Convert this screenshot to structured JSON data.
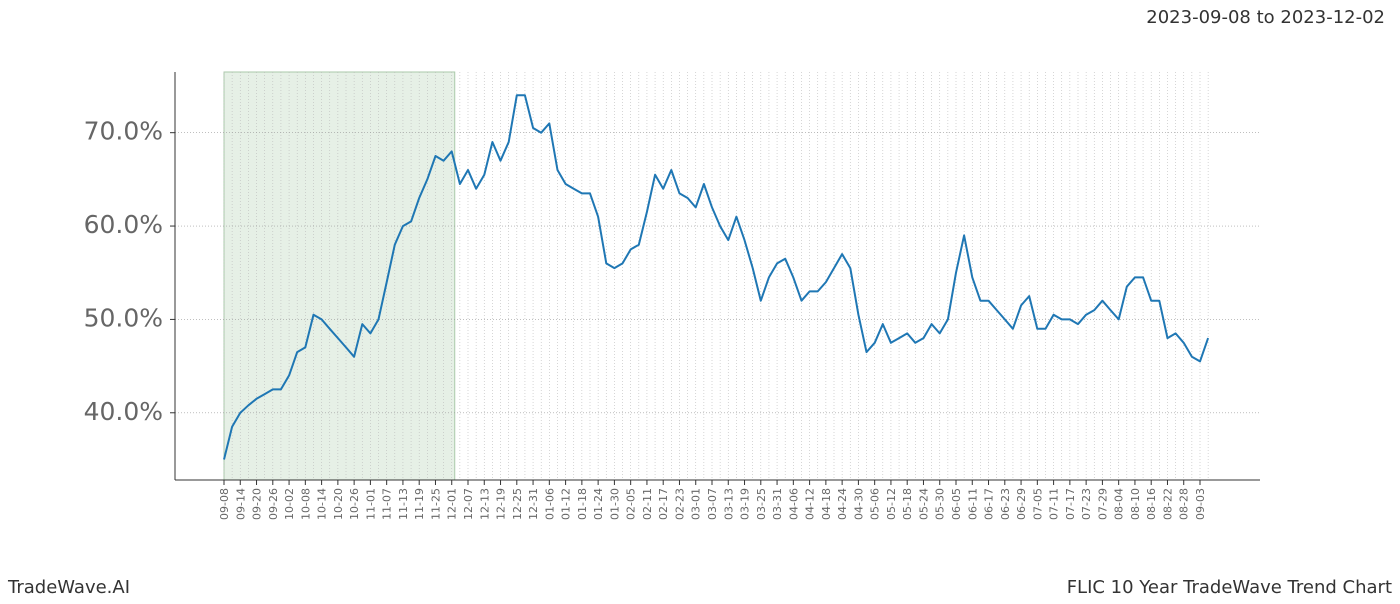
{
  "date_range": "2023-09-08 to 2023-12-02",
  "brand": "TradeWave.AI",
  "footer_title": "FLIC 10 Year TradeWave Trend Chart",
  "chart_data": {
    "type": "line",
    "categories": [
      "09-08",
      null,
      "09-14",
      null,
      "09-20",
      null,
      "09-26",
      null,
      "10-02",
      null,
      "10-08",
      null,
      "10-14",
      null,
      "10-20",
      null,
      "10-26",
      null,
      "11-01",
      null,
      "11-07",
      null,
      "11-13",
      null,
      "11-19",
      null,
      "11-25",
      null,
      "12-01",
      null,
      "12-07",
      null,
      "12-13",
      null,
      "12-19",
      null,
      "12-25",
      null,
      "12-31",
      null,
      "01-06",
      null,
      "01-12",
      null,
      "01-18",
      null,
      "01-24",
      null,
      "01-30",
      null,
      "02-05",
      null,
      "02-11",
      null,
      "02-17",
      null,
      "02-23",
      null,
      "03-01",
      null,
      "03-07",
      null,
      "03-13",
      null,
      "03-19",
      null,
      "03-25",
      null,
      "03-31",
      null,
      "04-06",
      null,
      "04-12",
      null,
      "04-18",
      null,
      "04-24",
      null,
      "04-30",
      null,
      "05-06",
      null,
      "05-12",
      null,
      "05-18",
      null,
      "05-24",
      null,
      "05-30",
      null,
      "06-05",
      null,
      "06-11",
      null,
      "06-17",
      null,
      "06-23",
      null,
      "06-29",
      null,
      "07-05",
      null,
      "07-11",
      null,
      "07-17",
      null,
      "07-23",
      null,
      "07-29",
      null,
      "08-04",
      null,
      "08-10",
      null,
      "08-16",
      null,
      "08-22",
      null,
      "08-28",
      null,
      "09-03",
      null
    ],
    "values": [
      35.0,
      38.5,
      40.0,
      40.8,
      41.5,
      42.0,
      42.5,
      42.5,
      44.0,
      46.5,
      47.0,
      50.5,
      50.0,
      49.0,
      48.0,
      47.0,
      46.0,
      49.5,
      48.5,
      50.0,
      54.0,
      58.0,
      60.0,
      60.5,
      63.0,
      65.0,
      67.5,
      67.0,
      68.0,
      64.5,
      66.0,
      64.0,
      65.5,
      69.0,
      67.0,
      69.0,
      74.0,
      74.0,
      70.5,
      70.0,
      71.0,
      66.0,
      64.5,
      64.0,
      63.5,
      63.5,
      61.0,
      56.0,
      55.5,
      56.0,
      57.5,
      58.0,
      61.5,
      65.5,
      64.0,
      66.0,
      63.5,
      63.0,
      62.0,
      64.5,
      62.0,
      60.0,
      58.5,
      61.0,
      58.5,
      55.5,
      52.0,
      54.5,
      56.0,
      56.5,
      54.5,
      52.0,
      53.0,
      53.0,
      54.0,
      55.5,
      57.0,
      55.5,
      50.5,
      46.5,
      47.5,
      49.5,
      47.5,
      48.0,
      48.5,
      47.5,
      48.0,
      49.5,
      48.5,
      50.0,
      55.0,
      59.0,
      54.5,
      52.0,
      52.0,
      51.0,
      50.0,
      49.0,
      51.5,
      52.5,
      49.0,
      49.0,
      50.5,
      50.0,
      50.0,
      49.5,
      50.5,
      51.0,
      52.0,
      51.0,
      50.0,
      53.5,
      54.5,
      54.5,
      52.0,
      52.0,
      48.0,
      48.5,
      47.5,
      46.0,
      45.5,
      48.0
    ],
    "color": "#1f77b4",
    "ylim": [
      32.8,
      76.5
    ],
    "yticks": [
      {
        "value": 40,
        "label": "40.0%"
      },
      {
        "value": 50,
        "label": "50.0%"
      },
      {
        "value": 60,
        "label": "60.0%"
      },
      {
        "value": 70,
        "label": "70.0%"
      }
    ],
    "grid": true,
    "highlight": {
      "start": "09-08",
      "end": "12-01",
      "color": "#e6f0e6"
    }
  }
}
